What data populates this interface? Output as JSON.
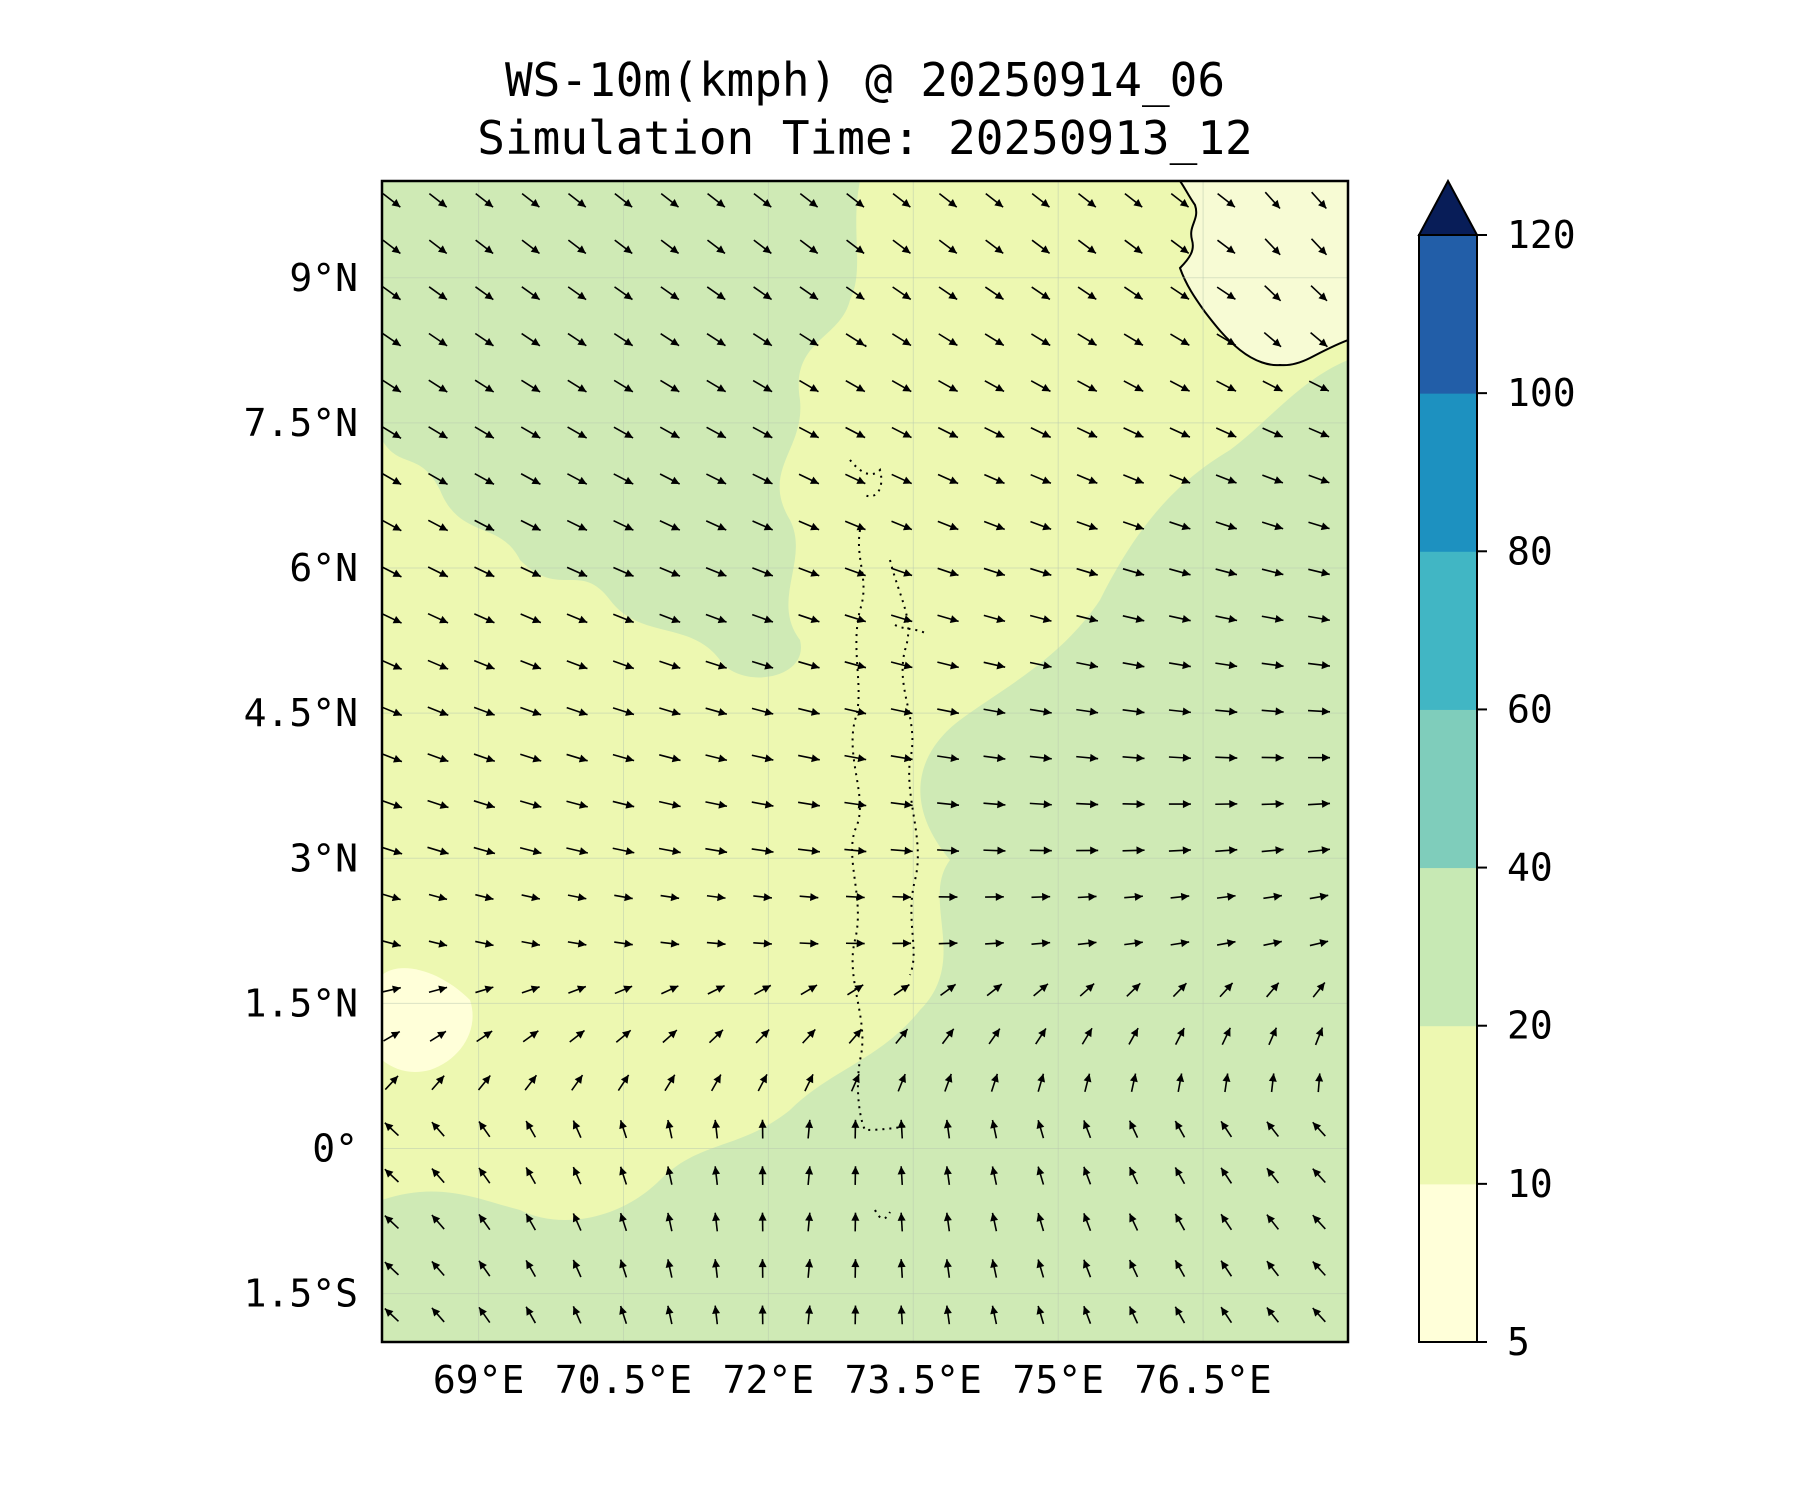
{
  "title": {
    "line1": "WS-10m(kmph) @ 20250914_06",
    "line2": "Simulation Time: 20250913_12"
  },
  "map_data": {
    "type": "filled-contour-with-wind-vectors",
    "variable": "WS-10m",
    "units": "kmph",
    "lon_range": [
      68.0,
      78.0
    ],
    "lat_range": [
      -2.0,
      10.0
    ],
    "lon_ticks": [
      {
        "value": 69.0,
        "label": "69°E"
      },
      {
        "value": 70.5,
        "label": "70.5°E"
      },
      {
        "value": 72.0,
        "label": "72°E"
      },
      {
        "value": 73.5,
        "label": "73.5°E"
      },
      {
        "value": 75.0,
        "label": "75°E"
      },
      {
        "value": 76.5,
        "label": "76.5°E"
      }
    ],
    "lat_ticks": [
      {
        "value": 9.0,
        "label": "9°N"
      },
      {
        "value": 7.5,
        "label": "7.5°N"
      },
      {
        "value": 6.0,
        "label": "6°N"
      },
      {
        "value": 4.5,
        "label": "4.5°N"
      },
      {
        "value": 3.0,
        "label": "3°N"
      },
      {
        "value": 1.5,
        "label": "1.5°N"
      },
      {
        "value": 0.0,
        "label": "0°"
      },
      {
        "value": -1.5,
        "label": "1.5°S"
      }
    ],
    "gridlines": true,
    "colorbar": {
      "placement": "right",
      "extend": "max",
      "levels": [
        {
          "value": 5,
          "label": "5"
        },
        {
          "value": 10,
          "label": "10"
        },
        {
          "value": 20,
          "label": "20"
        },
        {
          "value": 40,
          "label": "40"
        },
        {
          "value": 60,
          "label": "60"
        },
        {
          "value": 80,
          "label": "80"
        },
        {
          "value": 100,
          "label": "100"
        },
        {
          "value": 120,
          "label": "120"
        }
      ],
      "colors": [
        "#ffffd9",
        "#edf8b1",
        "#c7e9b4",
        "#7fcdbb",
        "#41b6c4",
        "#1d91c0",
        "#225ea8",
        "#0c2c84"
      ],
      "extend_color": "#081d58"
    },
    "field_colors": {
      "land": "#f7fbd4",
      "calm": "#ffffd9",
      "low": "#edf8b1",
      "moderate": "#cfeab5"
    },
    "coastline": "India / Sri Lanka south-west coast in top-right corner; Lakshadweep and Maldives atolls shown as dotted outlines near 73.5°E"
  }
}
